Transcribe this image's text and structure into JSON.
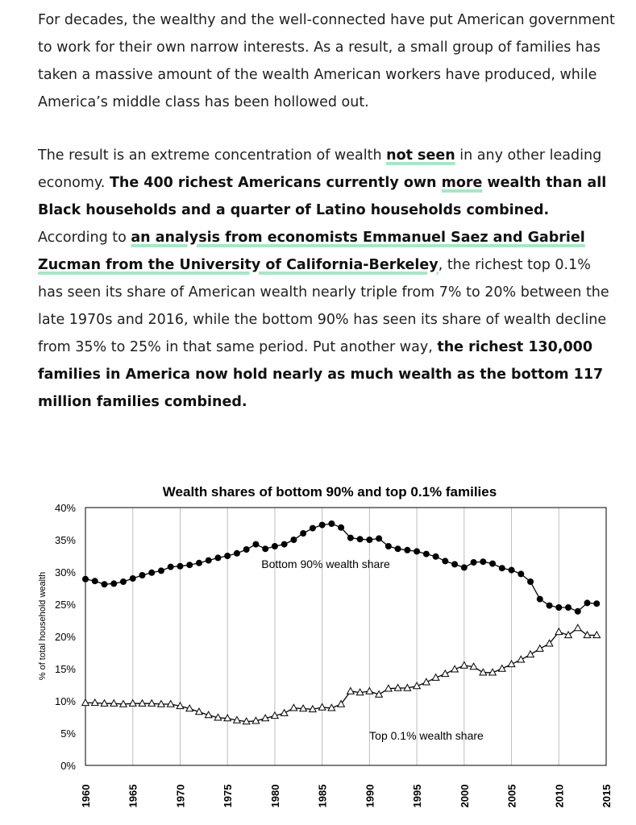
{
  "article": {
    "p1": "For decades, the wealthy and the well-connected have put American government to work for their own narrow interests. As a result, a small group of families has taken a massive amount of the wealth American workers have produced, while America’s middle class has been hollowed out.",
    "p2": {
      "t1": "The result is an extreme concentration of wealth ",
      "link1": "not seen",
      "t2": " in any other leading economy. ",
      "b1": "The 400 richest Americans currently own ",
      "link2": "more",
      "b2": " wealth than all Black households and a quarter of Latino households combined.",
      "t3": " According to ",
      "link3": "an analysis from economists Emmanuel Saez and Gabriel Zucman from the University of California-Berkeley",
      "t4": ", the richest top 0.1% has seen its share of American wealth nearly triple from 7% to 20% between the late 1970s and 2016, while the bottom 90% has seen its share of wealth decline from 35% to 25% in that same period. Put another way, ",
      "b3": "the richest 130,000 families in America now hold nearly as much wealth as the bottom 117 million families combined."
    }
  },
  "colors": {
    "highlight": "#a8e6c5",
    "text": "#1f1f1f"
  },
  "chart_data": {
    "type": "line",
    "title": "Wealth shares of bottom 90% and top 0.1% families",
    "ylabel": "% of total household wealth",
    "xlabel": "",
    "xlim": [
      1960,
      2015
    ],
    "ylim": [
      0,
      40
    ],
    "x_ticks": [
      "1960",
      "1965",
      "1970",
      "1975",
      "1980",
      "1985",
      "1990",
      "1995",
      "2000",
      "2005",
      "2010",
      "2015"
    ],
    "y_ticks": [
      "0%",
      "5%",
      "10%",
      "15%",
      "20%",
      "25%",
      "30%",
      "35%",
      "40%"
    ],
    "grid": "vertical",
    "series": [
      {
        "name": "Bottom 90% wealth share",
        "marker": "filled-circle",
        "x": [
          1960,
          1961,
          1962,
          1963,
          1964,
          1965,
          1966,
          1967,
          1968,
          1969,
          1970,
          1971,
          1972,
          1973,
          1974,
          1975,
          1976,
          1977,
          1978,
          1979,
          1980,
          1981,
          1982,
          1983,
          1984,
          1985,
          1986,
          1987,
          1988,
          1989,
          1990,
          1991,
          1992,
          1993,
          1994,
          1995,
          1996,
          1997,
          1998,
          1999,
          2000,
          2001,
          2002,
          2003,
          2004,
          2005,
          2006,
          2007,
          2008,
          2009,
          2010,
          2011,
          2012,
          2013,
          2014
        ],
        "values": [
          28.9,
          28.6,
          28.1,
          28.2,
          28.5,
          29.0,
          29.5,
          29.9,
          30.2,
          30.8,
          30.9,
          31.1,
          31.4,
          31.8,
          32.2,
          32.5,
          32.9,
          33.5,
          34.3,
          33.6,
          34.0,
          34.3,
          35.0,
          36.0,
          36.8,
          37.3,
          37.5,
          36.9,
          35.3,
          35.1,
          35.0,
          35.2,
          34.0,
          33.6,
          33.4,
          33.2,
          32.8,
          32.4,
          31.7,
          31.2,
          30.7,
          31.5,
          31.6,
          31.3,
          30.6,
          30.3,
          29.7,
          28.5,
          25.8,
          24.8,
          24.5,
          24.5,
          23.9,
          25.2,
          25.1
        ]
      },
      {
        "name": "Top 0.1% wealth share",
        "marker": "open-triangle",
        "x": [
          1960,
          1961,
          1962,
          1963,
          1964,
          1965,
          1966,
          1967,
          1968,
          1969,
          1970,
          1971,
          1972,
          1973,
          1974,
          1975,
          1976,
          1977,
          1978,
          1979,
          1980,
          1981,
          1982,
          1983,
          1984,
          1985,
          1986,
          1987,
          1988,
          1989,
          1990,
          1991,
          1992,
          1993,
          1994,
          1995,
          1996,
          1997,
          1998,
          1999,
          2000,
          2001,
          2002,
          2003,
          2004,
          2005,
          2006,
          2007,
          2008,
          2009,
          2010,
          2011,
          2012,
          2013,
          2014
        ],
        "values": [
          9.7,
          9.7,
          9.6,
          9.6,
          9.5,
          9.6,
          9.6,
          9.6,
          9.5,
          9.5,
          9.2,
          8.8,
          8.3,
          7.8,
          7.4,
          7.3,
          7.0,
          6.8,
          6.9,
          7.3,
          7.7,
          8.1,
          8.9,
          8.8,
          8.7,
          9.0,
          8.9,
          9.5,
          11.5,
          11.3,
          11.5,
          11.0,
          11.9,
          12.0,
          12.0,
          12.3,
          12.9,
          13.6,
          14.2,
          14.9,
          15.5,
          15.3,
          14.4,
          14.4,
          15.0,
          15.7,
          16.4,
          17.2,
          18.1,
          18.9,
          20.7,
          20.2,
          21.3,
          20.2,
          20.2
        ]
      }
    ],
    "annotations": [
      "Bottom 90% wealth share",
      "Top 0.1% wealth share"
    ]
  }
}
